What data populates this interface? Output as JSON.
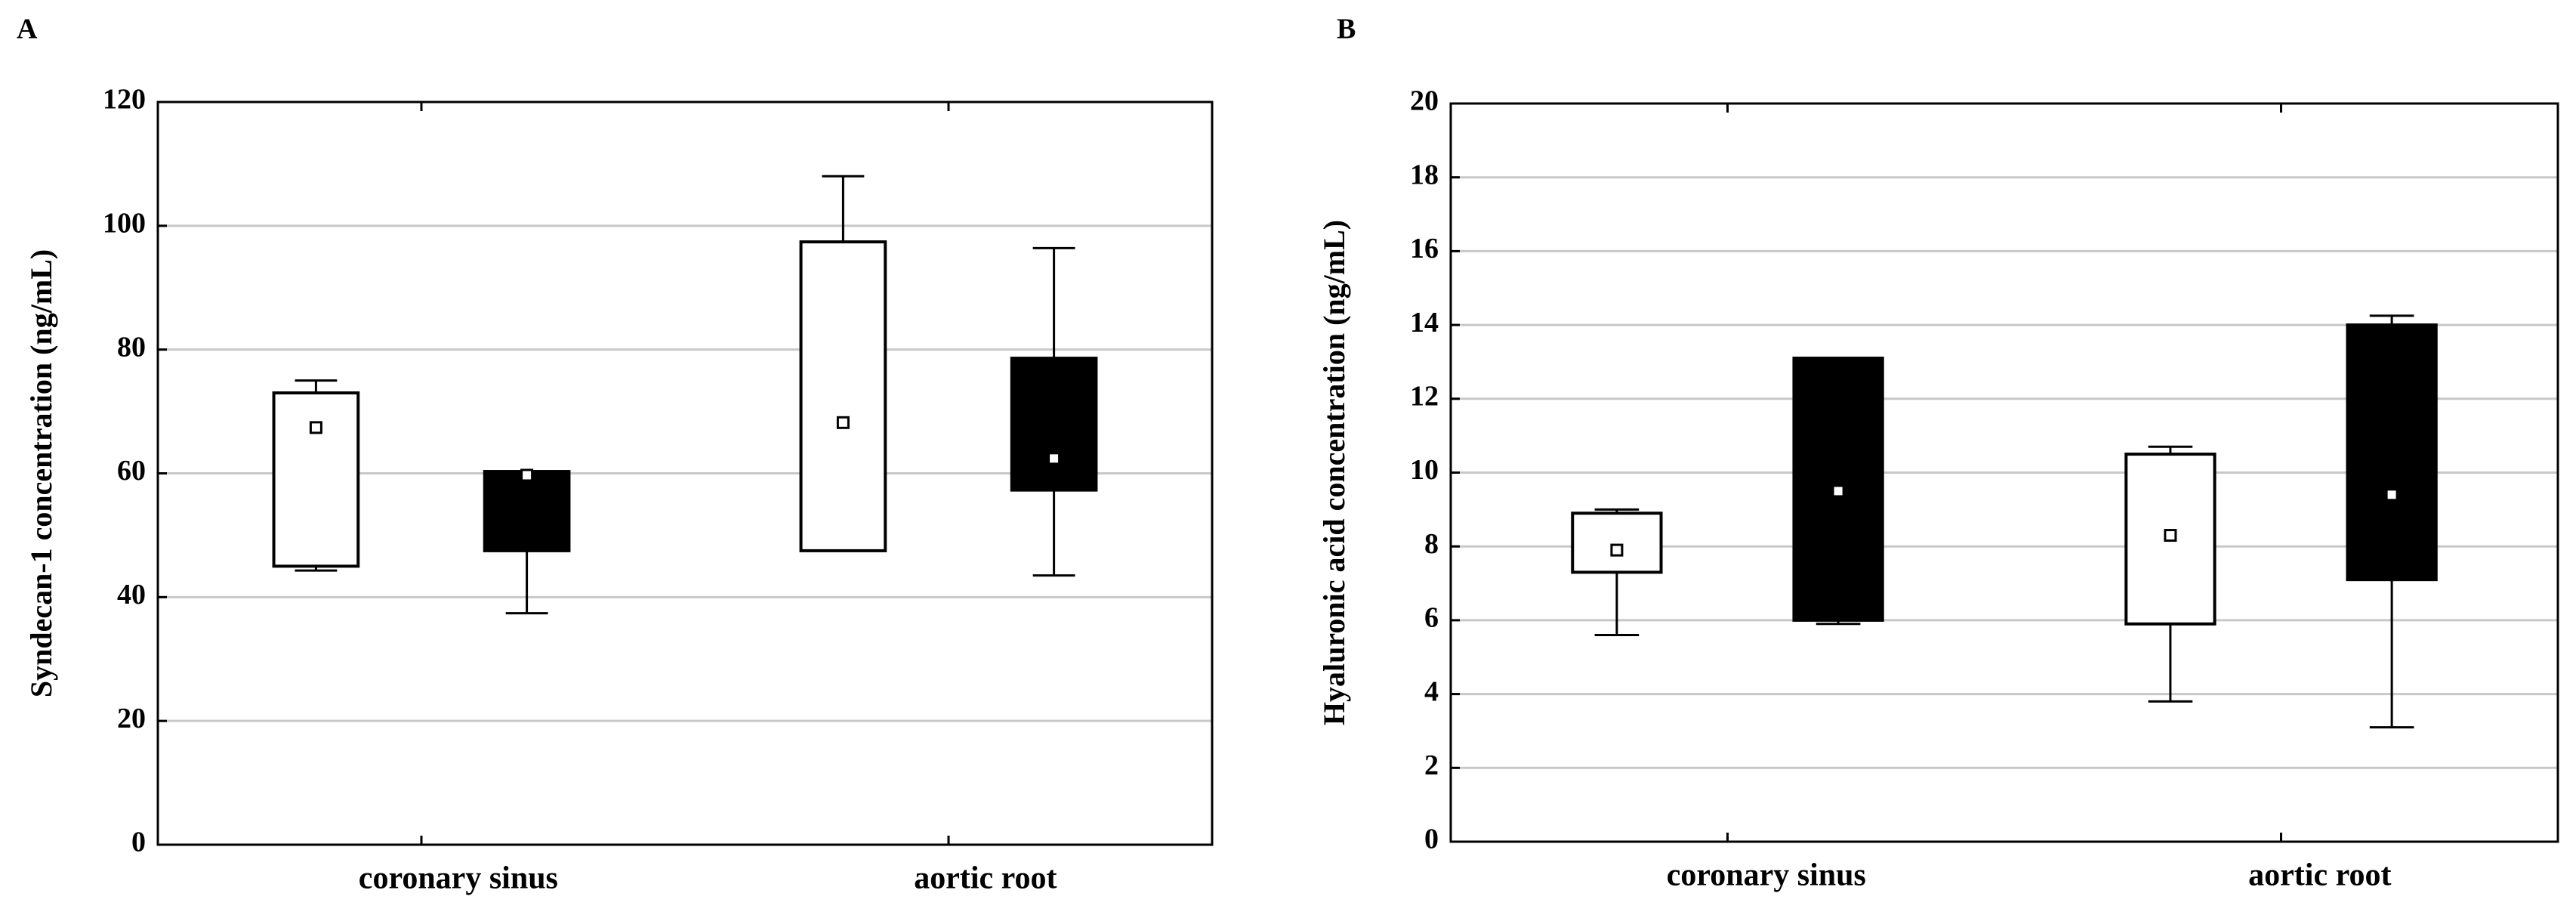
{
  "chart_data": [
    {
      "type": "box",
      "label": "A",
      "ylabel": "Syndecan-1 concentration (ng/mL)",
      "categories": [
        "coronary sinus",
        "aortic root"
      ],
      "ylim": [
        0,
        120
      ],
      "yticks": [
        0,
        20,
        40,
        60,
        80,
        100,
        120
      ],
      "grid": true,
      "series": [
        {
          "color": "#ffffff",
          "boxes": [
            {
              "low": 44.3,
              "q1": 45,
              "q3": 73,
              "high": 75,
              "mean": 67.4
            },
            {
              "low": 47.5,
              "q1": 47.5,
              "q3": 97.4,
              "high": 108,
              "mean": 68.2
            }
          ]
        },
        {
          "color": "#000000",
          "boxes": [
            {
              "low": 37.4,
              "q1": 47.5,
              "q3": 60.3,
              "high": 60.3,
              "mean": 59.7
            },
            {
              "low": 43.5,
              "q1": 57.3,
              "q3": 78.6,
              "high": 96.4,
              "mean": 62.4
            }
          ]
        }
      ]
    },
    {
      "type": "box",
      "label": "B",
      "ylabel": "Hyaluronic acid concentration (ng/mL)",
      "categories": [
        "coronary sinus",
        "aortic root"
      ],
      "ylim": [
        0,
        20
      ],
      "yticks": [
        0,
        2,
        4,
        6,
        8,
        10,
        12,
        14,
        16,
        18,
        20
      ],
      "grid": true,
      "series": [
        {
          "color": "#ffffff",
          "boxes": [
            {
              "low": 5.6,
              "q1": 7.3,
              "q3": 8.9,
              "high": 9.0,
              "mean": 7.9
            },
            {
              "low": 3.8,
              "q1": 5.9,
              "q3": 10.5,
              "high": 10.7,
              "mean": 8.3
            }
          ]
        },
        {
          "color": "#000000",
          "boxes": [
            {
              "low": 5.9,
              "q1": 6.0,
              "q3": 13.1,
              "high": 13.1,
              "mean": 9.5
            },
            {
              "low": 3.1,
              "q1": 7.1,
              "q3": 14.0,
              "high": 14.25,
              "mean": 9.4
            }
          ]
        }
      ]
    }
  ]
}
